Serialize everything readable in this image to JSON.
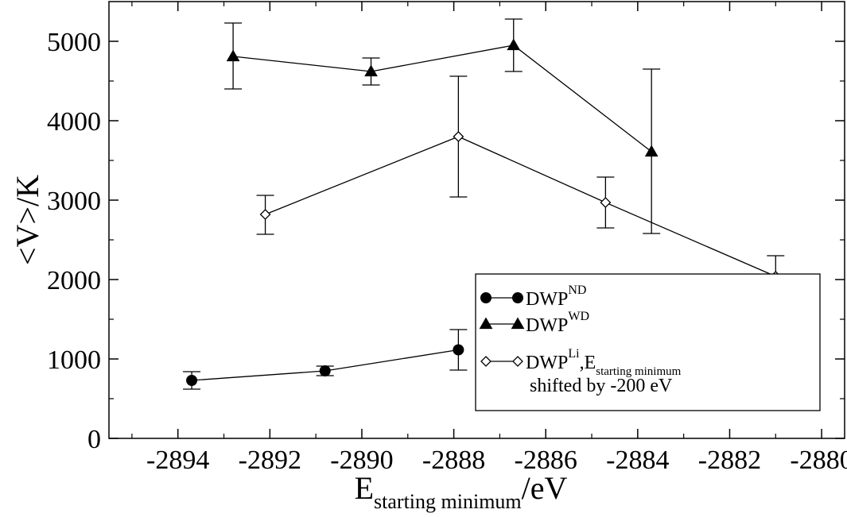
{
  "chart_data": {
    "type": "scatter",
    "xlim": [
      -2895.5,
      -2879.5
    ],
    "ylim": [
      0,
      5500
    ],
    "x_ticks": [
      -2894,
      -2892,
      -2890,
      -2888,
      -2886,
      -2884,
      -2882,
      -2880
    ],
    "y_ticks": [
      0,
      1000,
      2000,
      3000,
      4000,
      5000
    ],
    "x_tick_labels": [
      "-2894",
      "-2892",
      "-2890",
      "-2888",
      "-2886",
      "-2884",
      "-2882",
      "-2880"
    ],
    "y_tick_labels": [
      "0",
      "1000",
      "2000",
      "3000",
      "4000",
      "5000"
    ],
    "xlabel": {
      "main": "E",
      "sub": "starting minimum",
      "tail": "/eV"
    },
    "ylabel": "<V>/K",
    "grid": false,
    "legend_placement": "lower-right",
    "series": [
      {
        "name": "DWP",
        "sup": "ND",
        "marker": "circle-filled",
        "x": [
          -2893.7,
          -2890.8,
          -2887.9
        ],
        "y": [
          730,
          850,
          1115
        ],
        "err_low": [
          620,
          790,
          860
        ],
        "err_high": [
          840,
          910,
          1370
        ]
      },
      {
        "name": "DWP",
        "sup": "WD",
        "marker": "triangle-filled",
        "x": [
          -2892.8,
          -2889.8,
          -2886.7,
          -2883.7
        ],
        "y": [
          4810,
          4620,
          4950,
          3610
        ],
        "err_low": [
          4400,
          4450,
          4620,
          2580
        ],
        "err_high": [
          5230,
          4790,
          5280,
          4650
        ]
      },
      {
        "name": "DWP",
        "sup": "Li",
        "name_suffix": ",E",
        "name_sub": "starting minimum",
        "name_line2": "shifted by -200 eV",
        "marker": "diamond-open",
        "x": [
          -2892.1,
          -2887.9,
          -2884.7,
          -2881.0
        ],
        "y": [
          2820,
          3800,
          2970,
          2040
        ],
        "err_low": [
          2570,
          3040,
          2650,
          1770
        ],
        "err_high": [
          3060,
          4560,
          3290,
          2300
        ]
      }
    ]
  }
}
